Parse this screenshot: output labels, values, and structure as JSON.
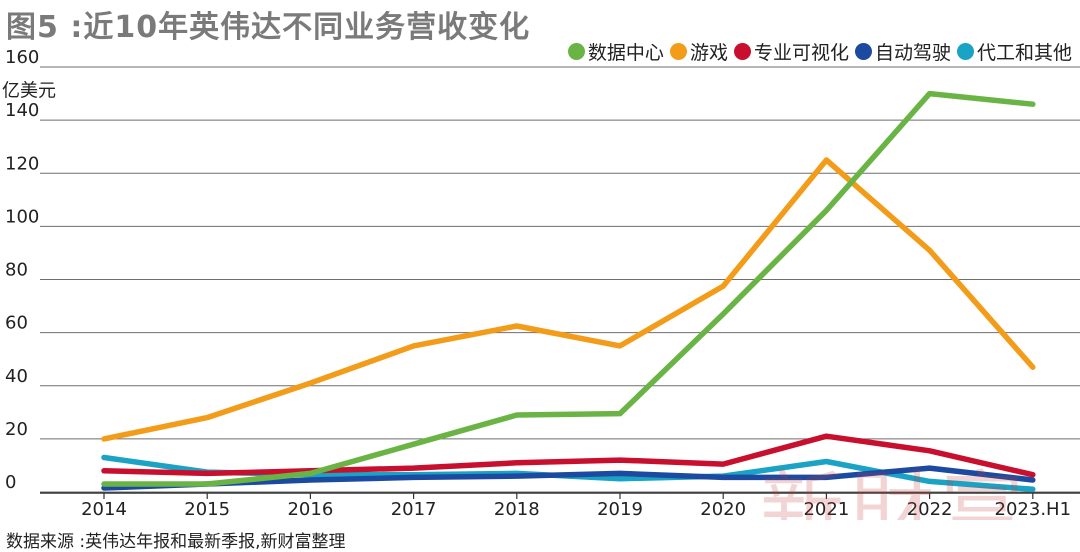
{
  "title": "图5 :近10年英伟达不同业务营收变化",
  "source": "数据来源 :英伟达年报和最新季报,新财富整理",
  "watermark": "新財富",
  "chart_data": {
    "type": "line",
    "unit_label": "亿美元",
    "ylim": [
      0,
      160
    ],
    "yticks": [
      0,
      20,
      40,
      60,
      80,
      100,
      120,
      140,
      160
    ],
    "categories": [
      "2014",
      "2015",
      "2016",
      "2017",
      "2018",
      "2019",
      "2020",
      "2021",
      "2022",
      "2023.H1"
    ],
    "grid": true,
    "legend_position": "top-right",
    "series": [
      {
        "name": "数据中心",
        "color": "#6ab445",
        "values": [
          3,
          3,
          7,
          18,
          29,
          29.5,
          67,
          106,
          150,
          146
        ]
      },
      {
        "name": "游戏",
        "color": "#f39c1a",
        "values": [
          20,
          28,
          41,
          55,
          62.5,
          55,
          77.5,
          125,
          91,
          47
        ]
      },
      {
        "name": "专业可视化",
        "color": "#c8102e",
        "values": [
          8,
          7,
          8,
          9,
          11,
          12,
          10.5,
          21,
          15.5,
          6.5
        ]
      },
      {
        "name": "自动驾驶",
        "color": "#1c4aa0",
        "values": [
          1.5,
          3,
          4.5,
          5.5,
          6,
          7,
          5.5,
          5.5,
          9,
          4.5
        ]
      },
      {
        "name": "代工和其他",
        "color": "#1aa3c4",
        "values": [
          13,
          7.5,
          6.5,
          6.5,
          7,
          5,
          6,
          11.5,
          4,
          1
        ]
      }
    ]
  }
}
